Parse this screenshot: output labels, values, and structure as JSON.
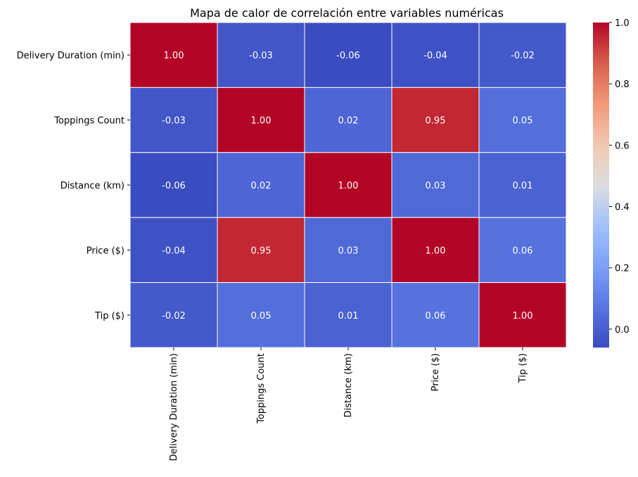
{
  "chart_data": {
    "type": "heatmap",
    "title": "Mapa de calor de correlación entre variables numéricas",
    "xlabel": "",
    "ylabel": "",
    "rows": [
      "Delivery Duration (min)",
      "Toppings Count",
      "Distance (km)",
      "Price ($)",
      "Tip ($)"
    ],
    "columns": [
      "Delivery Duration (min)",
      "Toppings Count",
      "Distance (km)",
      "Price ($)",
      "Tip ($)"
    ],
    "values": [
      [
        1.0,
        -0.03,
        -0.06,
        -0.04,
        -0.02
      ],
      [
        -0.03,
        1.0,
        0.02,
        0.95,
        0.05
      ],
      [
        -0.06,
        0.02,
        1.0,
        0.03,
        0.01
      ],
      [
        -0.04,
        0.95,
        0.03,
        1.0,
        0.06
      ],
      [
        -0.02,
        0.05,
        0.01,
        0.06,
        1.0
      ]
    ],
    "value_format": "0.00",
    "colormap": "coolwarm",
    "colorbar": {
      "range": [
        -0.06,
        1.0
      ],
      "ticks": [
        0.0,
        0.2,
        0.4,
        0.6,
        0.8,
        1.0
      ],
      "tick_labels": [
        "0.0",
        "0.2",
        "0.4",
        "0.6",
        "0.8",
        "1.0"
      ]
    },
    "cell_line_color": "#ffffff",
    "legend_position": "right"
  }
}
